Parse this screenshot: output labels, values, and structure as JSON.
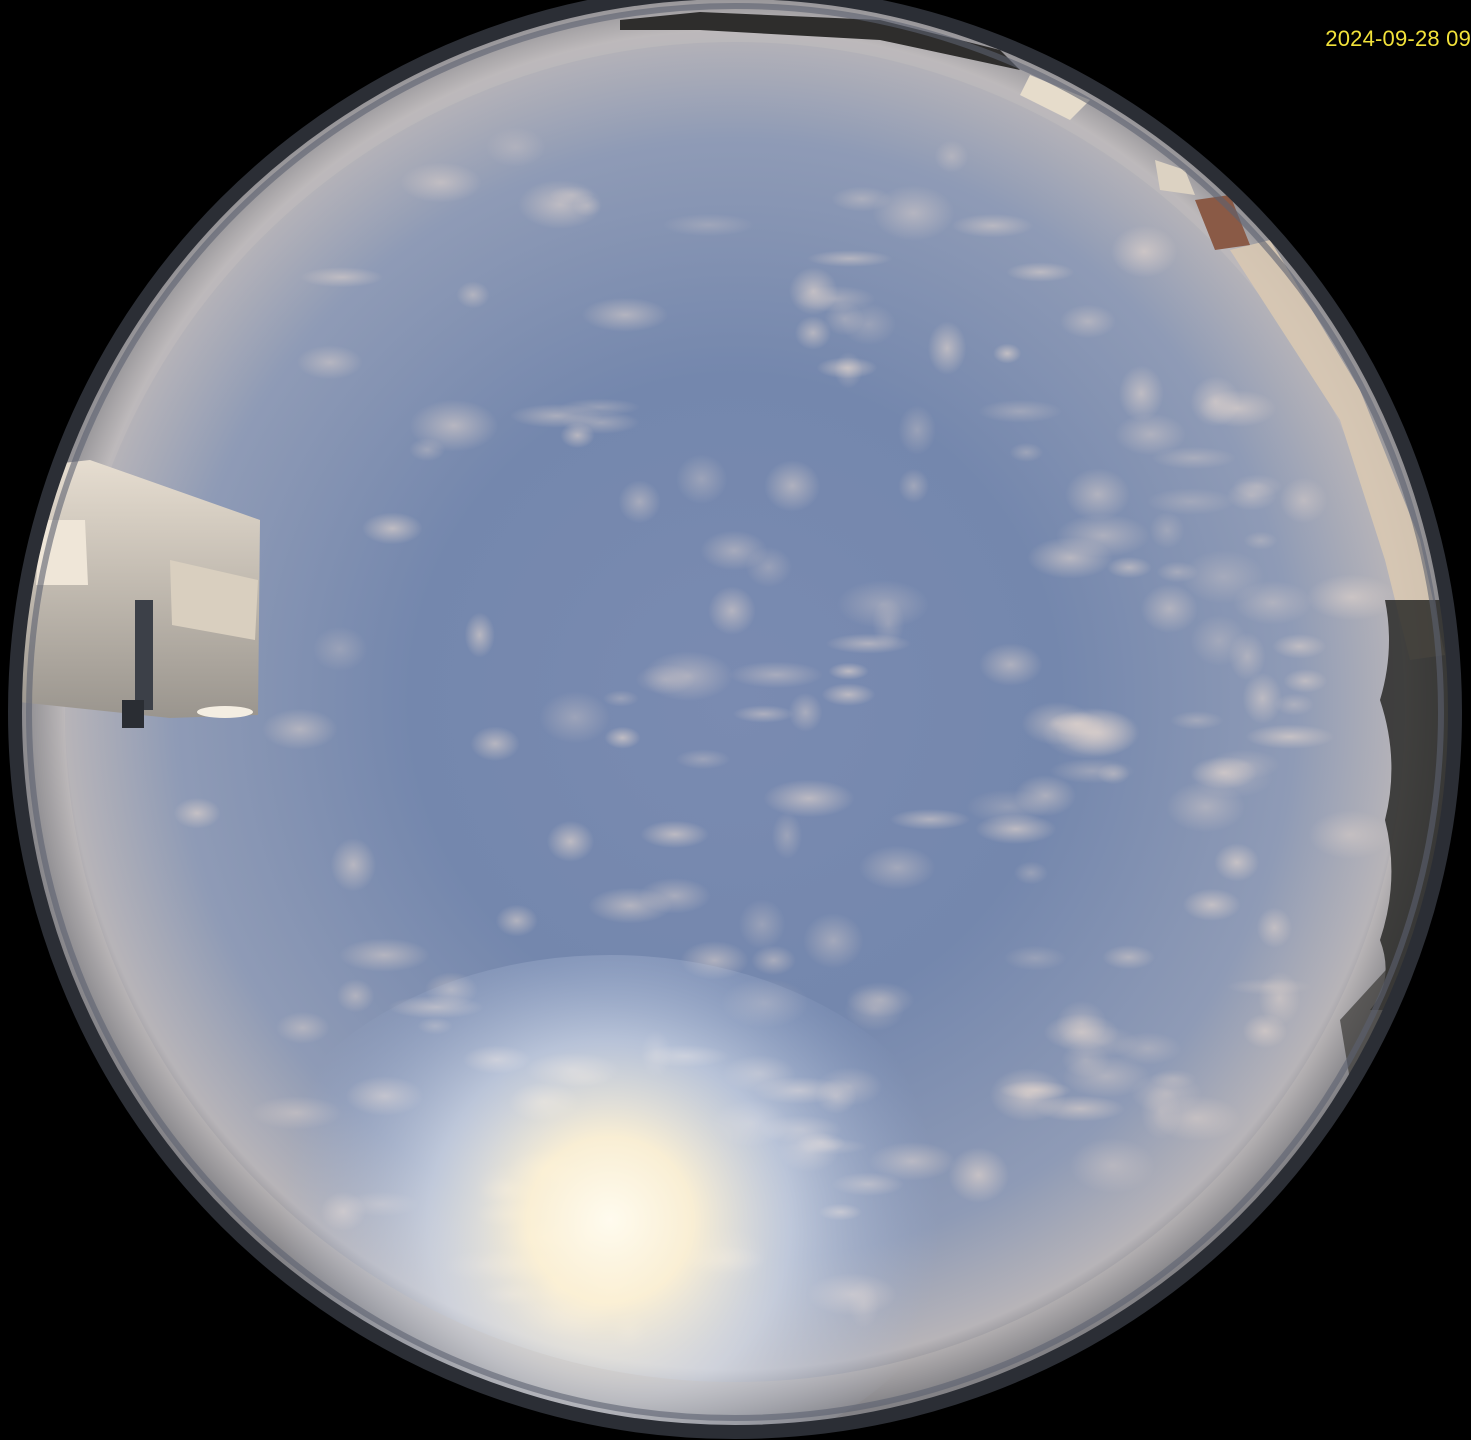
{
  "overlay": {
    "timestamp": "2024-09-28 09"
  },
  "colors": {
    "background": "#000000",
    "timestamp_text": "#f2e23a",
    "sky_zenith": "#6a7ea6",
    "sky_horizon": "#c9c2bf",
    "sun_glow": "#fff8e6",
    "lens_rim": "#3a3f48"
  },
  "scene": {
    "kind": "all-sky fisheye camera view",
    "features": [
      "altocumulus-clouds",
      "sun-glare",
      "mounting-arm",
      "building-edge",
      "treeline"
    ]
  }
}
